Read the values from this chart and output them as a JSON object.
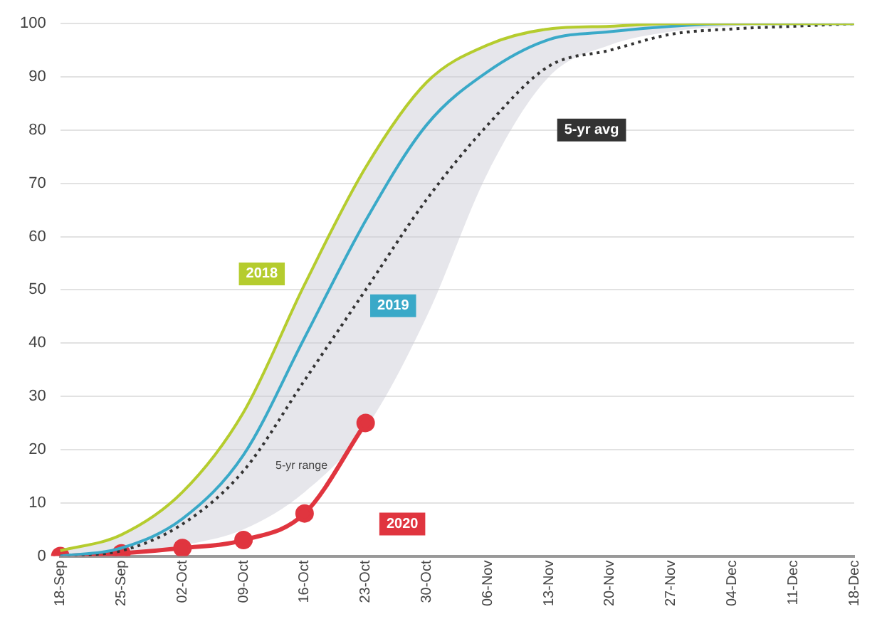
{
  "chart_data": {
    "type": "line",
    "categories": [
      "18-Sep",
      "25-Sep",
      "02-Oct",
      "09-Oct",
      "16-Oct",
      "23-Oct",
      "30-Oct",
      "06-Nov",
      "13-Nov",
      "20-Nov",
      "27-Nov",
      "04-Dec",
      "11-Dec",
      "18-Dec"
    ],
    "series": [
      {
        "name": "2018",
        "color": "#b5cc2e",
        "values": [
          1,
          4,
          12,
          27,
          51,
          73,
          89,
          96,
          99,
          99.5,
          100,
          100,
          100,
          100
        ]
      },
      {
        "name": "2019",
        "color": "#3aa9c8",
        "values": [
          0,
          1.5,
          7,
          19,
          41,
          63,
          81,
          91,
          97,
          98.5,
          99.5,
          100,
          100,
          100
        ]
      },
      {
        "name": "5-yr avg",
        "color": "#333333",
        "line_style": "dotted",
        "values": [
          0,
          1,
          6,
          16,
          33,
          50,
          67,
          81,
          92,
          95,
          98,
          99,
          99.5,
          100
        ],
        "lower": [
          0,
          0.5,
          2,
          5,
          12,
          24,
          45,
          72,
          90,
          96,
          98.5,
          99.5,
          100,
          100
        ],
        "upper": [
          1,
          4,
          12,
          27,
          51,
          73,
          89,
          96,
          99,
          99.5,
          100,
          100,
          100,
          100
        ]
      },
      {
        "name": "2020",
        "color": "#e0353f",
        "marker": "circle",
        "values": [
          0,
          0.5,
          1.5,
          3,
          8,
          25,
          null,
          null,
          null,
          null,
          null,
          null,
          null,
          null
        ]
      }
    ],
    "annotations": [
      "5-yr range"
    ],
    "ylim": [
      0,
      100
    ],
    "yticks": [
      0,
      10,
      20,
      30,
      40,
      50,
      60,
      70,
      80,
      90,
      100
    ],
    "grid": "y",
    "legend": false,
    "marker": "none",
    "line_style": "solid"
  }
}
